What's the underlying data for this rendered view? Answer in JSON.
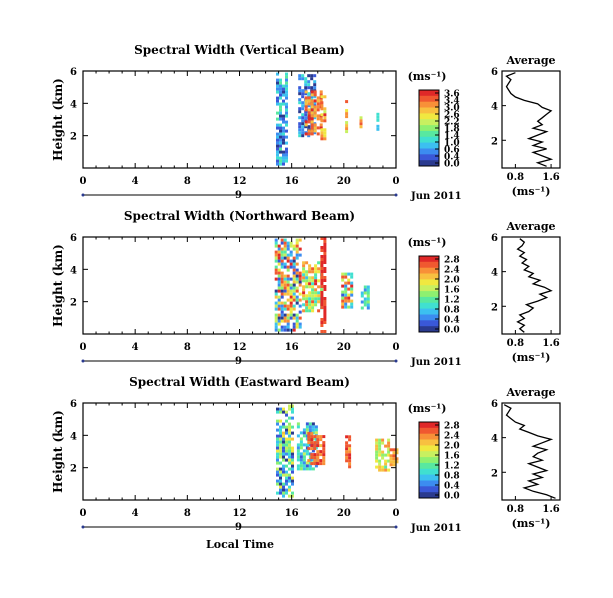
{
  "colorbar": {
    "colors": [
      "#2a3a8f",
      "#3a58d8",
      "#3c8cf0",
      "#3cc0f0",
      "#40e0d0",
      "#58e8a0",
      "#8ef070",
      "#c8f060",
      "#f0e840",
      "#f8c040",
      "#f89038",
      "#f05830",
      "#e02828"
    ]
  },
  "chart_data": [
    {
      "type": "heatmap",
      "title": "Spectral Width (Vertical Beam)",
      "ylabel": "Height (km)",
      "unit_label": "(ms⁻¹)",
      "y_ticks": [
        "6",
        "4",
        "2"
      ],
      "x_ticks": [
        "0",
        "4",
        "8",
        "12",
        "16",
        "20",
        "0"
      ],
      "date_ticks": [
        "9"
      ],
      "date_label": "Jun 2011",
      "colorbar_ticks": [
        "3.6",
        "3.4",
        "3.0",
        "2.6",
        "2.2",
        "1.8",
        "1.4",
        "1.0",
        "0.6",
        "0.4",
        "0.0"
      ],
      "xlim": [
        0,
        24
      ],
      "ylim": [
        0,
        6
      ],
      "data_columns": [
        {
          "x": 14.8,
          "x2": 15.5,
          "y0": 0.3,
          "y1": 5.9,
          "vmin": 0,
          "vmax": 1.6
        },
        {
          "x": 16.5,
          "x2": 17.8,
          "y0": 2.0,
          "y1": 5.8,
          "vmin": 0,
          "vmax": 1.2
        },
        {
          "x": 17.0,
          "x2": 18.2,
          "y0": 2.2,
          "y1": 4.8,
          "vmin": 2.6,
          "vmax": 3.6
        },
        {
          "x": 18.2,
          "x2": 18.5,
          "y0": 1.8,
          "y1": 4.5,
          "vmin": 2.2,
          "vmax": 3.6
        },
        {
          "x": 20.1,
          "x2": 20.3,
          "y0": 2.2,
          "y1": 4.2,
          "vmin": 1.8,
          "vmax": 3.4
        },
        {
          "x": 21.2,
          "x2": 21.3,
          "y0": 2.4,
          "y1": 3.2,
          "vmin": 2.2,
          "vmax": 3.4
        },
        {
          "x": 22.5,
          "x2": 22.7,
          "y0": 2.4,
          "y1": 3.6,
          "vmin": 0.6,
          "vmax": 1.4
        }
      ],
      "average": {
        "title": "Average",
        "xlabel": "(ms⁻¹)",
        "x_ticks": [
          "0.8",
          "1.6"
        ],
        "y_ticks": [
          "6",
          "4",
          "2"
        ],
        "xlim": [
          0.5,
          1.8
        ],
        "ylim": [
          0.4,
          6
        ],
        "heights": [
          0.5,
          0.7,
          0.9,
          1.1,
          1.3,
          1.5,
          1.7,
          1.9,
          2.1,
          2.3,
          2.5,
          2.7,
          2.9,
          3.1,
          3.3,
          3.5,
          3.7,
          3.9,
          4.1,
          4.3,
          4.5,
          4.7,
          4.9,
          5.1,
          5.3,
          5.5,
          5.7,
          5.9
        ],
        "values": [
          1.5,
          1.3,
          1.6,
          1.4,
          1.2,
          1.5,
          1.2,
          1.4,
          1.1,
          1.3,
          1.5,
          1.2,
          1.4,
          1.3,
          1.4,
          1.5,
          1.6,
          1.4,
          1.3,
          1.0,
          0.8,
          0.7,
          0.65,
          0.6,
          0.65,
          0.7,
          0.6,
          0.8
        ]
      }
    },
    {
      "type": "heatmap",
      "title": "Spectral Width (Northward Beam)",
      "ylabel": "Height (km)",
      "unit_label": "(ms⁻¹)",
      "y_ticks": [
        "6",
        "4",
        "2"
      ],
      "x_ticks": [
        "0",
        "4",
        "8",
        "12",
        "16",
        "20",
        "0"
      ],
      "date_ticks": [
        "9"
      ],
      "date_label": "Jun 2011",
      "colorbar_ticks": [
        "2.8",
        "2.4",
        "2.0",
        "1.6",
        "1.2",
        "0.8",
        "0.4",
        "0.0"
      ],
      "xlim": [
        0,
        24
      ],
      "ylim": [
        0,
        6
      ],
      "data_columns": [
        {
          "x": 14.7,
          "x2": 16.6,
          "y0": 0.3,
          "y1": 5.9,
          "vmin": 0,
          "vmax": 2.8
        },
        {
          "x": 16.8,
          "x2": 18.2,
          "y0": 1.5,
          "y1": 4.5,
          "vmin": 0.8,
          "vmax": 2.8
        },
        {
          "x": 18.2,
          "x2": 18.6,
          "y0": 0.2,
          "y1": 6.0,
          "vmin": 2.6,
          "vmax": 2.8
        },
        {
          "x": 19.8,
          "x2": 20.6,
          "y0": 1.6,
          "y1": 3.8,
          "vmin": 0.2,
          "vmax": 2.8
        },
        {
          "x": 21.3,
          "x2": 21.9,
          "y0": 1.6,
          "y1": 3.0,
          "vmin": 0.4,
          "vmax": 1.4
        }
      ],
      "average": {
        "title": "Average",
        "xlabel": "(ms⁻¹)",
        "x_ticks": [
          "0.8",
          "1.6"
        ],
        "y_ticks": [
          "6",
          "4",
          "2"
        ],
        "xlim": [
          0.5,
          1.8
        ],
        "ylim": [
          0.4,
          6
        ],
        "heights": [
          0.5,
          0.7,
          0.9,
          1.1,
          1.3,
          1.5,
          1.7,
          1.9,
          2.1,
          2.3,
          2.5,
          2.7,
          2.9,
          3.1,
          3.3,
          3.5,
          3.7,
          3.9,
          4.1,
          4.3,
          4.5,
          4.7,
          4.9,
          5.1,
          5.3,
          5.5,
          5.7,
          5.9
        ],
        "values": [
          1.0,
          0.9,
          1.0,
          0.85,
          1.0,
          0.9,
          1.1,
          1.2,
          1.05,
          1.3,
          1.5,
          1.35,
          1.6,
          1.45,
          1.2,
          1.35,
          1.1,
          1.2,
          1.0,
          1.1,
          0.95,
          1.05,
          0.9,
          1.0,
          0.85,
          0.95,
          1.0,
          0.9
        ]
      }
    },
    {
      "type": "heatmap",
      "title": "Spectral Width (Eastward Beam)",
      "ylabel": "Height (km)",
      "unit_label": "(ms⁻¹)",
      "y_ticks": [
        "6",
        "4",
        "2"
      ],
      "x_ticks": [
        "0",
        "4",
        "8",
        "12",
        "16",
        "20",
        "0"
      ],
      "date_ticks": [
        "9"
      ],
      "date_label": "Jun 2011",
      "colorbar_ticks": [
        "2.8",
        "2.4",
        "2.0",
        "1.6",
        "1.2",
        "0.8",
        "0.4",
        "0.0"
      ],
      "xlim": [
        0,
        24
      ],
      "ylim": [
        0,
        6
      ],
      "data_columns": [
        {
          "x": 14.8,
          "x2": 16.0,
          "y0": 0.2,
          "y1": 5.9,
          "vmin": 0,
          "vmax": 2.0
        },
        {
          "x": 16.4,
          "x2": 18.0,
          "y0": 2.0,
          "y1": 4.8,
          "vmin": 0,
          "vmax": 1.6
        },
        {
          "x": 17.2,
          "x2": 18.4,
          "y0": 2.2,
          "y1": 4.2,
          "vmin": 2.2,
          "vmax": 2.8
        },
        {
          "x": 20.1,
          "x2": 20.5,
          "y0": 2.0,
          "y1": 4.0,
          "vmin": 2.2,
          "vmax": 2.8
        },
        {
          "x": 22.4,
          "x2": 23.4,
          "y0": 1.8,
          "y1": 3.8,
          "vmin": 1.2,
          "vmax": 2.4
        },
        {
          "x": 23.5,
          "x2": 24.0,
          "y0": 2.2,
          "y1": 3.2,
          "vmin": 2.0,
          "vmax": 2.6
        }
      ],
      "average": {
        "title": "Average",
        "xlabel": "(ms⁻¹)",
        "x_ticks": [
          "0.8",
          "1.6"
        ],
        "y_ticks": [
          "6",
          "4",
          "2"
        ],
        "xlim": [
          0.5,
          1.8
        ],
        "ylim": [
          0.4,
          6
        ],
        "heights": [
          0.5,
          0.7,
          0.9,
          1.1,
          1.3,
          1.5,
          1.7,
          1.9,
          2.1,
          2.3,
          2.5,
          2.7,
          2.9,
          3.1,
          3.3,
          3.5,
          3.7,
          3.9,
          4.1,
          4.3,
          4.5,
          4.7,
          4.9,
          5.1,
          5.3,
          5.5,
          5.7,
          5.9
        ],
        "values": [
          1.7,
          1.5,
          1.2,
          1.0,
          1.3,
          1.1,
          1.4,
          1.2,
          1.5,
          1.3,
          1.1,
          1.4,
          1.2,
          1.3,
          1.5,
          1.2,
          1.4,
          1.6,
          1.3,
          1.1,
          0.9,
          1.0,
          0.8,
          0.7,
          0.6,
          0.65,
          0.7,
          0.55
        ]
      }
    }
  ],
  "xlabel": "Local Time"
}
